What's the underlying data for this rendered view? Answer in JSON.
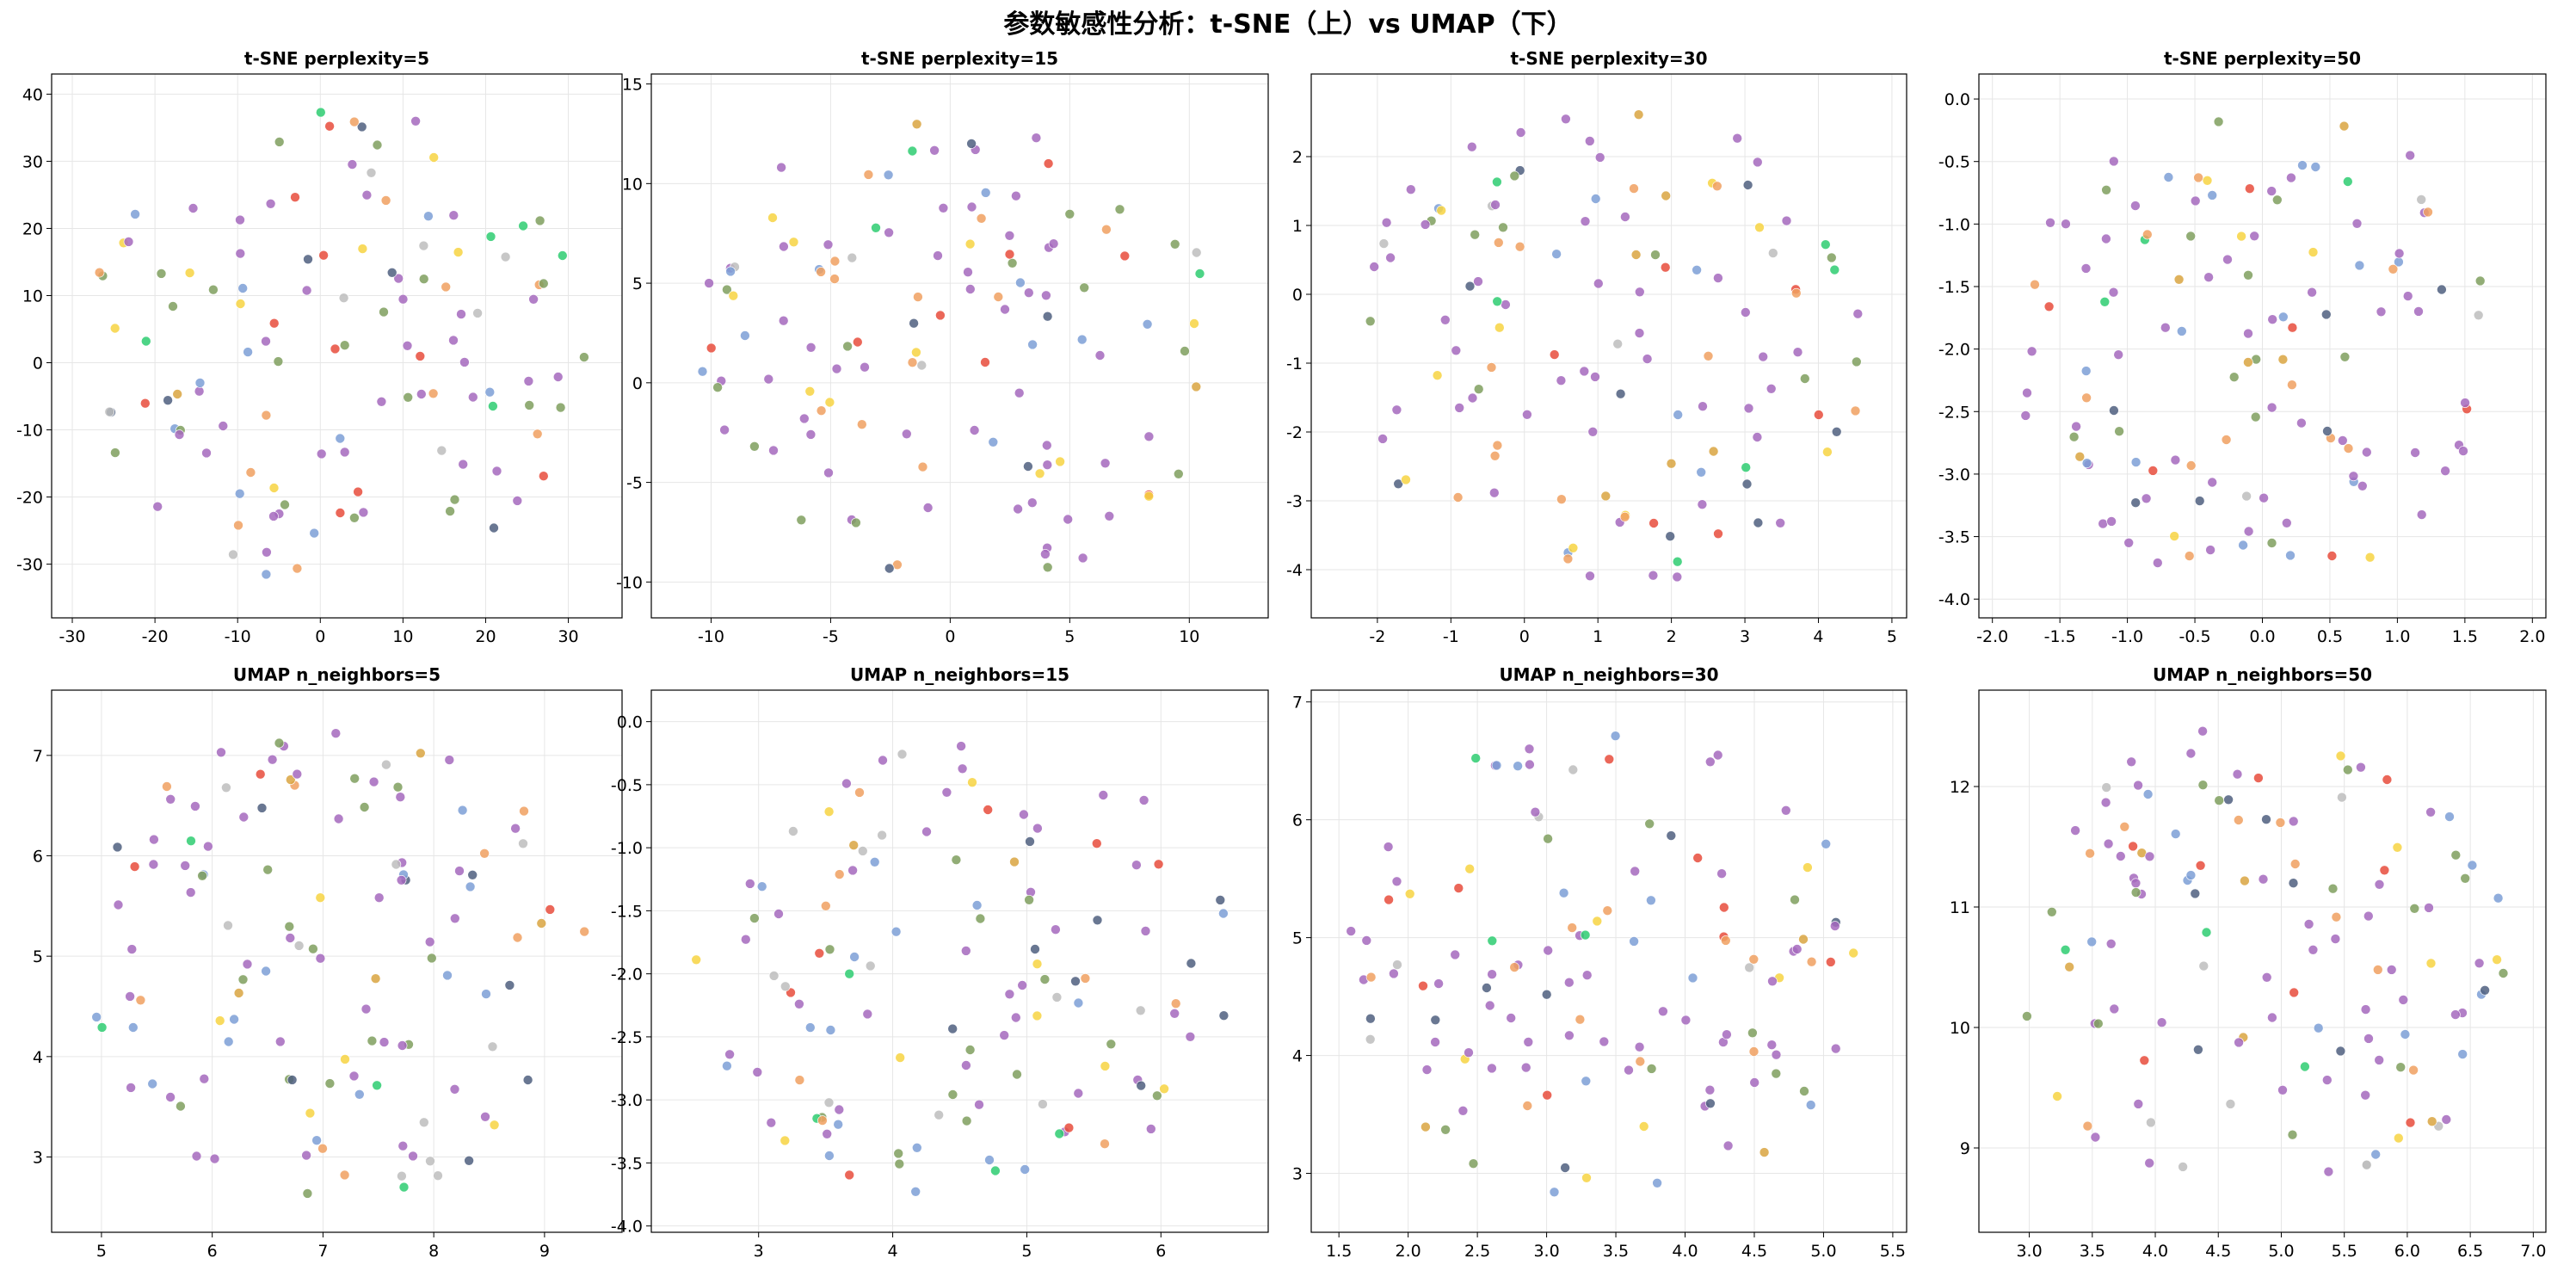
{
  "figure": {
    "title": "参数敏感性分析：t-SNE（上）vs UMAP（下）",
    "point_colors": {
      "purple": "#a569bd",
      "olive": "#7f9f5e",
      "green": "#2ecc71",
      "red": "#e74c3c",
      "orange": "#f0a060",
      "yellow": "#f7d442",
      "blue": "#7d9fd6",
      "gray": "#bdbdbd",
      "slate": "#4f5f7f",
      "goldenrod": "#d9a441"
    }
  },
  "chart_data": [
    {
      "type": "scatter",
      "title": "t-SNE perplexity=5",
      "xlim": [
        -32.5,
        36.5
      ],
      "ylim": [
        -38,
        43
      ],
      "xticks": [
        -30,
        -20,
        -10,
        0,
        10,
        20,
        30
      ],
      "yticks": [
        -30,
        -20,
        -10,
        0,
        10,
        20,
        30,
        40
      ],
      "grid": true,
      "seed": 11,
      "count": 120
    },
    {
      "type": "scatter",
      "title": "t-SNE perplexity=15",
      "xlim": [
        -12.5,
        13.3
      ],
      "ylim": [
        -11.8,
        15.5
      ],
      "xticks": [
        -10,
        -5,
        0,
        5,
        10
      ],
      "yticks": [
        -10,
        -5,
        0,
        5,
        10,
        15
      ],
      "grid": true,
      "seed": 23,
      "count": 120
    },
    {
      "type": "scatter",
      "title": "t-SNE perplexity=30",
      "xlim": [
        -2.9,
        5.2
      ],
      "ylim": [
        -4.7,
        3.2
      ],
      "xticks": [
        -2,
        -1,
        0,
        1,
        2,
        3,
        4,
        5
      ],
      "yticks": [
        -4,
        -3,
        -2,
        -1,
        0,
        1,
        2
      ],
      "grid": true,
      "seed": 37,
      "count": 120
    },
    {
      "type": "scatter",
      "title": "t-SNE perplexity=50",
      "xlim": [
        -2.1,
        2.1
      ],
      "ylim": [
        -4.15,
        0.2
      ],
      "xticks": [
        -2.0,
        -1.5,
        -1.0,
        -0.5,
        0.0,
        0.5,
        1.0,
        1.5,
        2.0
      ],
      "yticks": [
        -4.0,
        -3.5,
        -3.0,
        -2.5,
        -2.0,
        -1.5,
        -1.0,
        -0.5,
        0.0
      ],
      "xtick_labels": [
        "-2.0",
        "-1.5",
        "-1.0",
        "-0.5",
        "0.0",
        "0.5",
        "1.0",
        "1.5",
        "2.0"
      ],
      "ytick_labels": [
        "-4.0",
        "-3.5",
        "-3.0",
        "-2.5",
        "-2.0",
        "-1.5",
        "-1.0",
        "-0.5",
        "0.0"
      ],
      "grid": true,
      "seed": 41,
      "count": 120
    },
    {
      "type": "scatter",
      "title": "UMAP n_neighbors=5",
      "xlim": [
        4.55,
        9.7
      ],
      "ylim": [
        2.25,
        7.65
      ],
      "xticks": [
        5,
        6,
        7,
        8,
        9
      ],
      "yticks": [
        3,
        4,
        5,
        6,
        7
      ],
      "grid": true,
      "seed": 53,
      "count": 120
    },
    {
      "type": "scatter",
      "title": "UMAP n_neighbors=15",
      "xlim": [
        2.2,
        6.8
      ],
      "ylim": [
        -4.05,
        0.25
      ],
      "xticks": [
        3,
        4,
        5,
        6
      ],
      "yticks": [
        -4.0,
        -3.5,
        -3.0,
        -2.5,
        -2.0,
        -1.5,
        -1.0,
        -0.5,
        0.0
      ],
      "ytick_labels": [
        "-4.0",
        "-3.5",
        "-3.0",
        "-2.5",
        "-2.0",
        "-1.5",
        "-1.0",
        "-0.5",
        "0.0"
      ],
      "grid": true,
      "seed": 67,
      "count": 120
    },
    {
      "type": "scatter",
      "title": "UMAP n_neighbors=30",
      "xlim": [
        1.3,
        5.6
      ],
      "ylim": [
        2.5,
        7.1
      ],
      "xticks": [
        1.5,
        2.0,
        2.5,
        3.0,
        3.5,
        4.0,
        4.5,
        5.0,
        5.5
      ],
      "yticks": [
        3,
        4,
        5,
        6,
        7
      ],
      "xtick_labels": [
        "1.5",
        "2.0",
        "2.5",
        "3.0",
        "3.5",
        "4.0",
        "4.5",
        "5.0",
        "5.5"
      ],
      "grid": true,
      "seed": 79,
      "count": 120
    },
    {
      "type": "scatter",
      "title": "UMAP n_neighbors=50",
      "xlim": [
        2.6,
        7.1
      ],
      "ylim": [
        8.3,
        12.8
      ],
      "xticks": [
        3.0,
        3.5,
        4.0,
        4.5,
        5.0,
        5.5,
        6.0,
        6.5,
        7.0
      ],
      "yticks": [
        9,
        10,
        11,
        12
      ],
      "xtick_labels": [
        "3.0",
        "3.5",
        "4.0",
        "4.5",
        "5.0",
        "5.5",
        "6.0",
        "6.5",
        "7.0"
      ],
      "grid": true,
      "seed": 97,
      "count": 120
    }
  ]
}
